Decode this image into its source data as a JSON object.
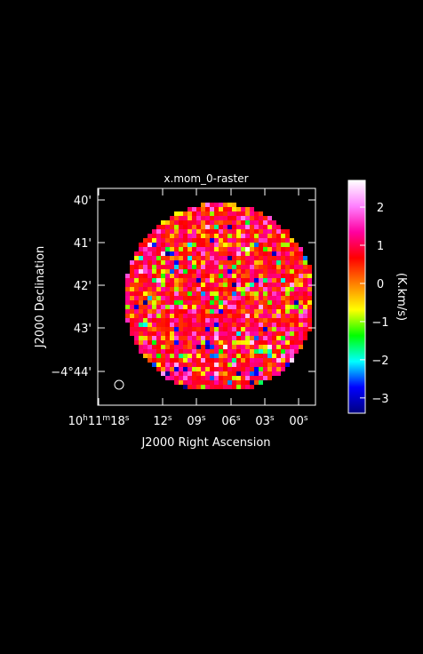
{
  "chart_data": {
    "type": "heatmap",
    "title": "x.mom_0-raster",
    "xlabel": "J2000 Right Ascension",
    "ylabel": "J2000 Declination",
    "colorbar_label": "(K.km/s)",
    "x_ticks": [
      {
        "h": "10",
        "m": "11",
        "s": "18"
      },
      {
        "s": "12"
      },
      {
        "s": "09"
      },
      {
        "s": "06"
      },
      {
        "s": "03"
      },
      {
        "s": "00"
      }
    ],
    "y_ticks": [
      "40'",
      "41'",
      "42'",
      "43'",
      "−4°44'"
    ],
    "colorbar_ticks": [
      "2",
      "1",
      "0",
      "−1",
      "−2",
      "−3"
    ],
    "colorbar_range": [
      -3.4,
      2.7
    ],
    "colormap": [
      "#000080",
      "#0000ff",
      "#00ffff",
      "#00ff00",
      "#ffff00",
      "#ff8000",
      "#ff0000",
      "#ff00a0",
      "#ff80ff",
      "#ffffff"
    ],
    "background": "#000000",
    "foreground": "#ffffff",
    "value_distribution": {
      "typical_range": [
        -1,
        2
      ],
      "dominant_value": 0.8,
      "min": -3.4,
      "max": 2.7
    },
    "beam_marker": "circle, lower-left"
  }
}
